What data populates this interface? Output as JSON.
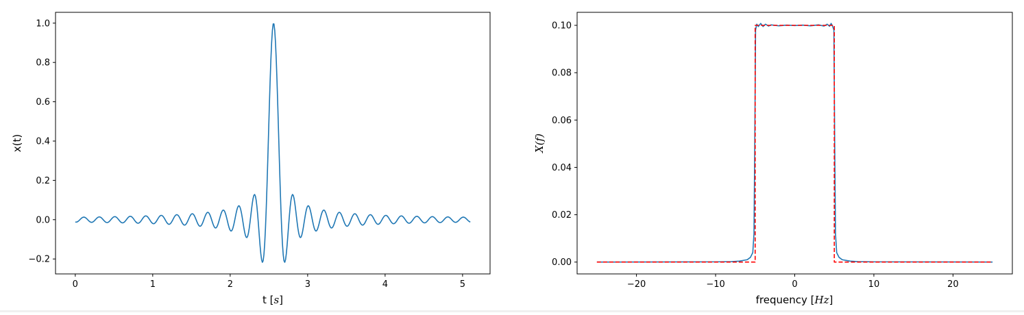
{
  "chart_data": [
    {
      "type": "line",
      "xlabel": {
        "text": "t ",
        "math": "s"
      },
      "ylabel": "x(t)",
      "xlim": [
        -0.255,
        5.355
      ],
      "ylim": [
        -0.276,
        1.055
      ],
      "xticks": [
        0,
        1,
        2,
        3,
        4,
        5
      ],
      "yticks": [
        -0.2,
        0.0,
        0.2,
        0.4,
        0.6,
        0.8,
        1.0
      ],
      "xtick_labels": [
        "0",
        "1",
        "2",
        "3",
        "4",
        "5"
      ],
      "ytick_labels": [
        "−0.2",
        "0.0",
        "0.2",
        "0.4",
        "0.6",
        "0.8",
        "1.0"
      ],
      "grid": false,
      "series": [
        {
          "color": "#1f77b4",
          "signal": {
            "kind": "sinc",
            "center": 2.56,
            "bandwidth_hz": 10,
            "t_start": 0,
            "t_end": 5.1,
            "samples": 512
          }
        }
      ]
    },
    {
      "type": "line",
      "xlabel": {
        "text": "frequency ",
        "math": "Hz"
      },
      "ylabel": {
        "math": "X(f)"
      },
      "xlim": [
        -27.5,
        27.5
      ],
      "ylim": [
        -0.005,
        0.1055
      ],
      "xticks": [
        -20,
        -10,
        0,
        10,
        20
      ],
      "yticks": [
        0.0,
        0.02,
        0.04,
        0.06,
        0.08,
        0.1
      ],
      "xtick_labels": [
        "−20",
        "−10",
        "0",
        "10",
        "20"
      ],
      "ytick_labels": [
        "0.00",
        "0.02",
        "0.04",
        "0.06",
        "0.08",
        "0.10"
      ],
      "grid": false,
      "series": [
        {
          "color": "#1f77b4",
          "style": "solid",
          "x": [
            -25,
            -10,
            -8,
            -7,
            -6,
            -5.6,
            -5.3,
            -5.15,
            -5.05,
            -4.95,
            -4.8,
            -4.6,
            -4.3,
            -4.0,
            -3.7,
            -3.3,
            -3,
            -2,
            -1,
            0,
            1,
            2,
            3,
            3.7,
            4.1,
            4.4,
            4.6,
            4.8,
            4.95,
            5.05,
            5.15,
            5.3,
            5.6,
            6,
            7,
            8,
            10,
            25
          ],
          "y": [
            0.0,
            0.0001,
            0.0002,
            0.0004,
            0.001,
            0.002,
            0.004,
            0.012,
            0.05,
            0.098,
            0.1005,
            0.0995,
            0.1008,
            0.0995,
            0.1005,
            0.0997,
            0.1002,
            0.0998,
            0.1001,
            0.0999,
            0.1001,
            0.0998,
            0.1002,
            0.0997,
            0.1005,
            0.0996,
            0.1008,
            0.0995,
            0.098,
            0.05,
            0.012,
            0.004,
            0.002,
            0.001,
            0.0004,
            0.0002,
            0.0001,
            0.0
          ]
        },
        {
          "color": "#ff0000",
          "style": "dashed",
          "x": [
            -25,
            -5,
            -5,
            5,
            5,
            25
          ],
          "y": [
            0.0,
            0.0,
            0.1,
            0.1,
            0.0,
            0.0
          ]
        }
      ]
    }
  ]
}
